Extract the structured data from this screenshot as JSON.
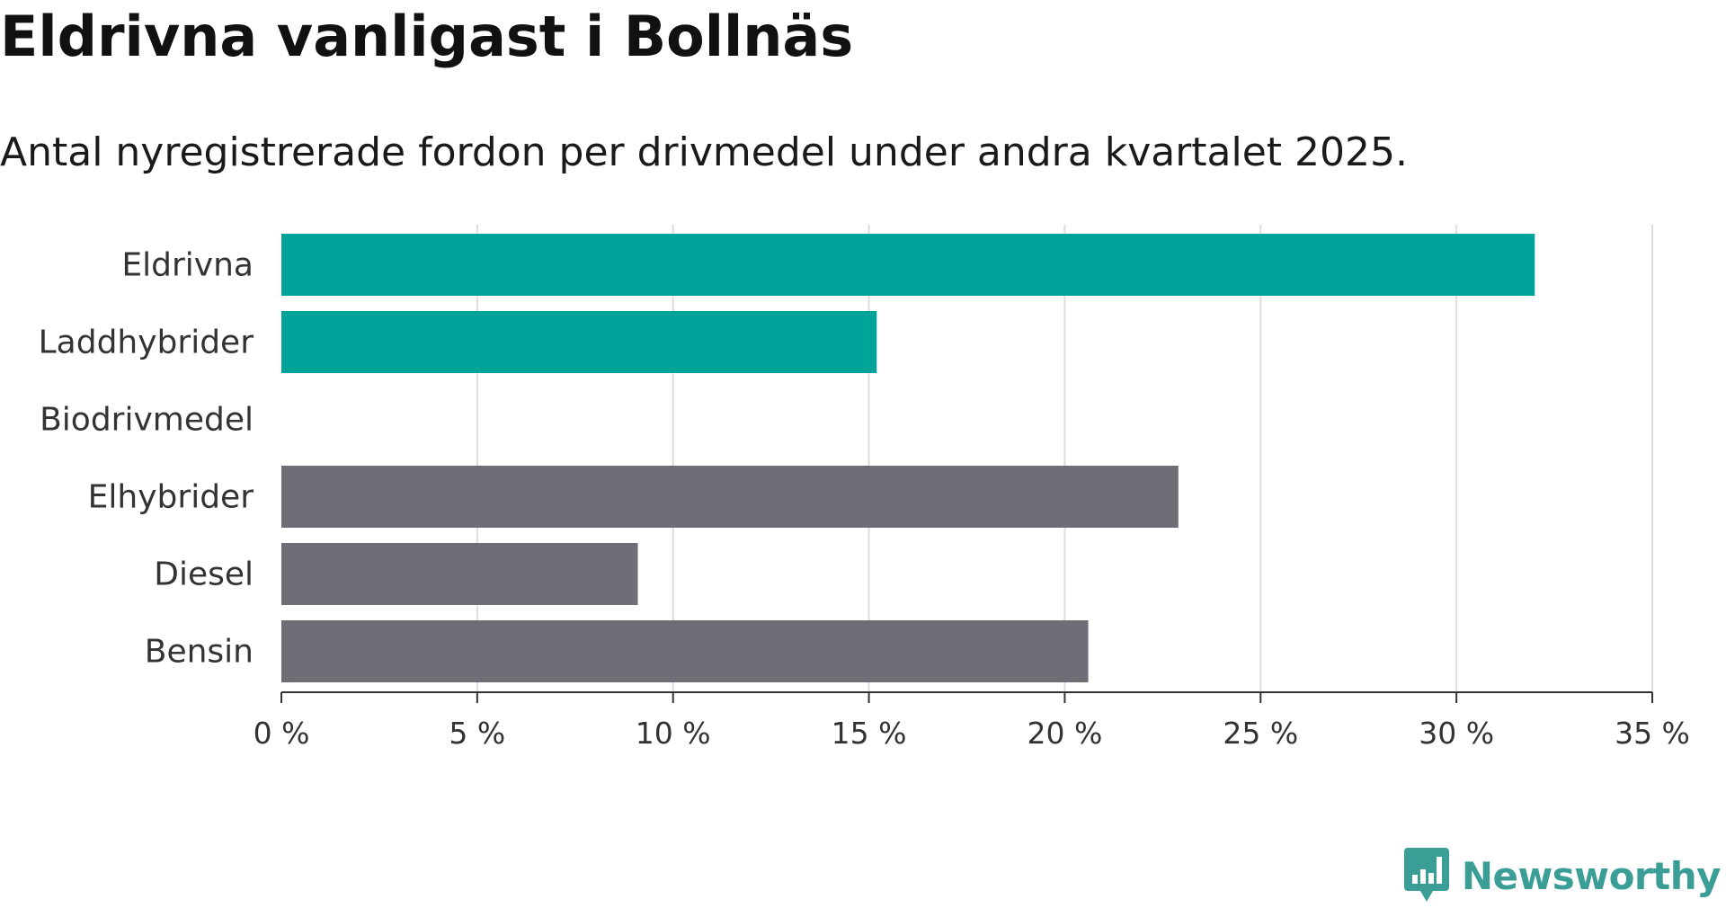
{
  "header": {
    "title": "Eldrivna vanligast i Bollnäs",
    "subtitle": "Antal nyregistrerade fordon per drivmedel under andra kvartalet 2025."
  },
  "chart_data": {
    "type": "bar",
    "orientation": "horizontal",
    "title": "Eldrivna vanligast i Bollnäs",
    "subtitle": "Antal nyregistrerade fordon per drivmedel under andra kvartalet 2025.",
    "xlabel": "",
    "ylabel": "",
    "categories": [
      "Eldrivna",
      "Laddhybrider",
      "Biodrivmedel",
      "Elhybrider",
      "Diesel",
      "Bensin"
    ],
    "values": [
      32.0,
      15.2,
      0,
      22.9,
      9.1,
      20.6
    ],
    "unit": "%",
    "xlim": [
      0,
      35
    ],
    "ticks": [
      0,
      5,
      10,
      15,
      20,
      25,
      30,
      35
    ],
    "tick_labels": [
      "0 %",
      "5 %",
      "10 %",
      "15 %",
      "20 %",
      "25 %",
      "30 %",
      "35 %"
    ],
    "grid": true,
    "legend": "none",
    "colors": {
      "highlight": "#00a39a",
      "default": "#6f6e77",
      "grid": "#dddddd",
      "axis": "#333333"
    },
    "highlighted_categories": [
      "Eldrivna",
      "Laddhybrider"
    ]
  },
  "branding": {
    "name": "Newsworthy",
    "icon": "bar-chart-speech-bubble-icon",
    "color": "#3a9e96"
  }
}
